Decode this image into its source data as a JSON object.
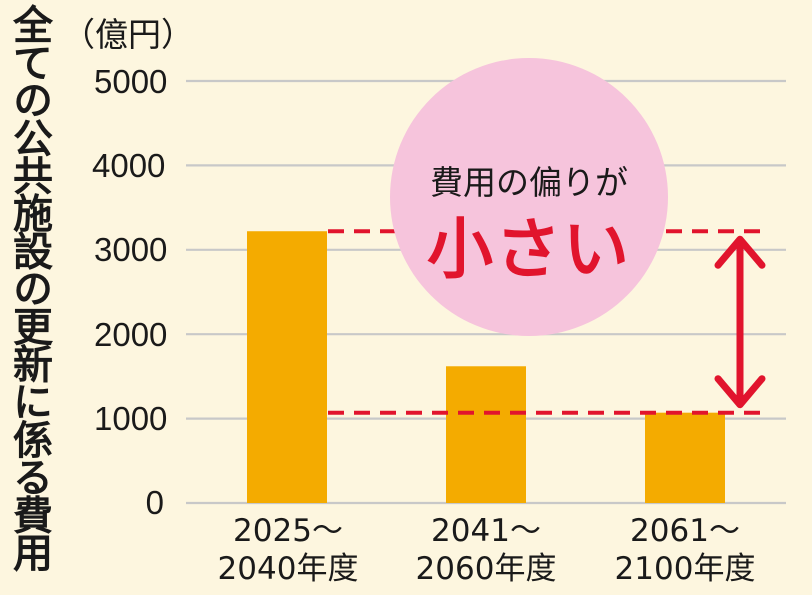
{
  "colors": {
    "background": "#fdf6df",
    "bar": "#f4ab00",
    "grid": "#c8c8c8",
    "accent_red": "#e1142d",
    "bubble": "#f6c4dc"
  },
  "annotation": {
    "line1": "費用の偏りが",
    "line2": "小さい"
  },
  "chart_data": {
    "type": "bar",
    "ylabel": "全ての公共施設の更新に係る費用",
    "unit": "（億円）",
    "categories": [
      {
        "line1": "2025～",
        "line2": "2040年度"
      },
      {
        "line1": "2041～",
        "line2": "2060年度"
      },
      {
        "line1": "2061～",
        "line2": "2100年度"
      }
    ],
    "values": [
      3220,
      1620,
      1070
    ],
    "yticks": [
      "0",
      "1000",
      "2000",
      "3000",
      "4000",
      "5000"
    ],
    "ylim": [
      0,
      5000
    ],
    "grid": true,
    "reference_lines": [
      3220,
      1070
    ]
  }
}
